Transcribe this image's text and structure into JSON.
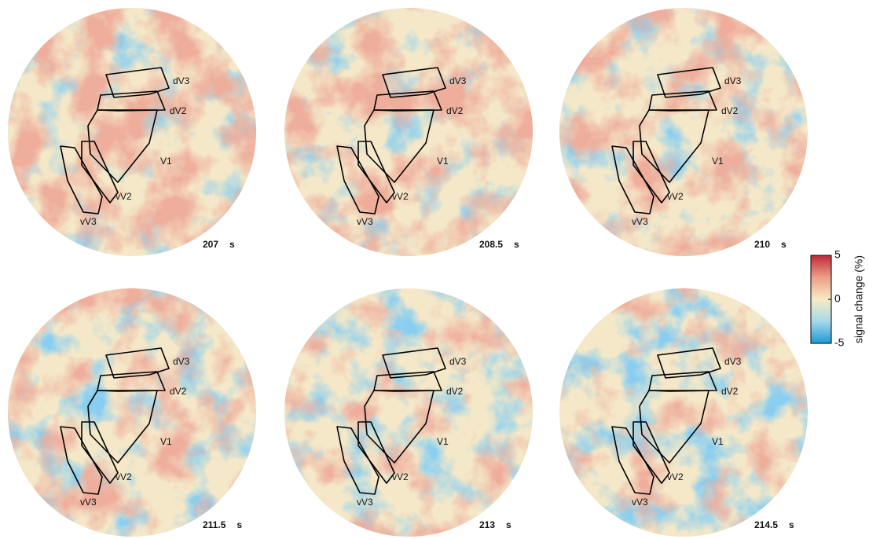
{
  "figure": {
    "region_labels": [
      "dV3",
      "dV2",
      "V1",
      "vV2",
      "vV3"
    ],
    "time_unit": "s",
    "panels": [
      {
        "time": 207
      },
      {
        "time": 208.5
      },
      {
        "time": 210
      },
      {
        "time": 211.5
      },
      {
        "time": 213
      },
      {
        "time": 214.5
      }
    ],
    "colorbar": {
      "label": "signal change (%)",
      "ticks": [
        5,
        0,
        -5
      ]
    }
  }
}
